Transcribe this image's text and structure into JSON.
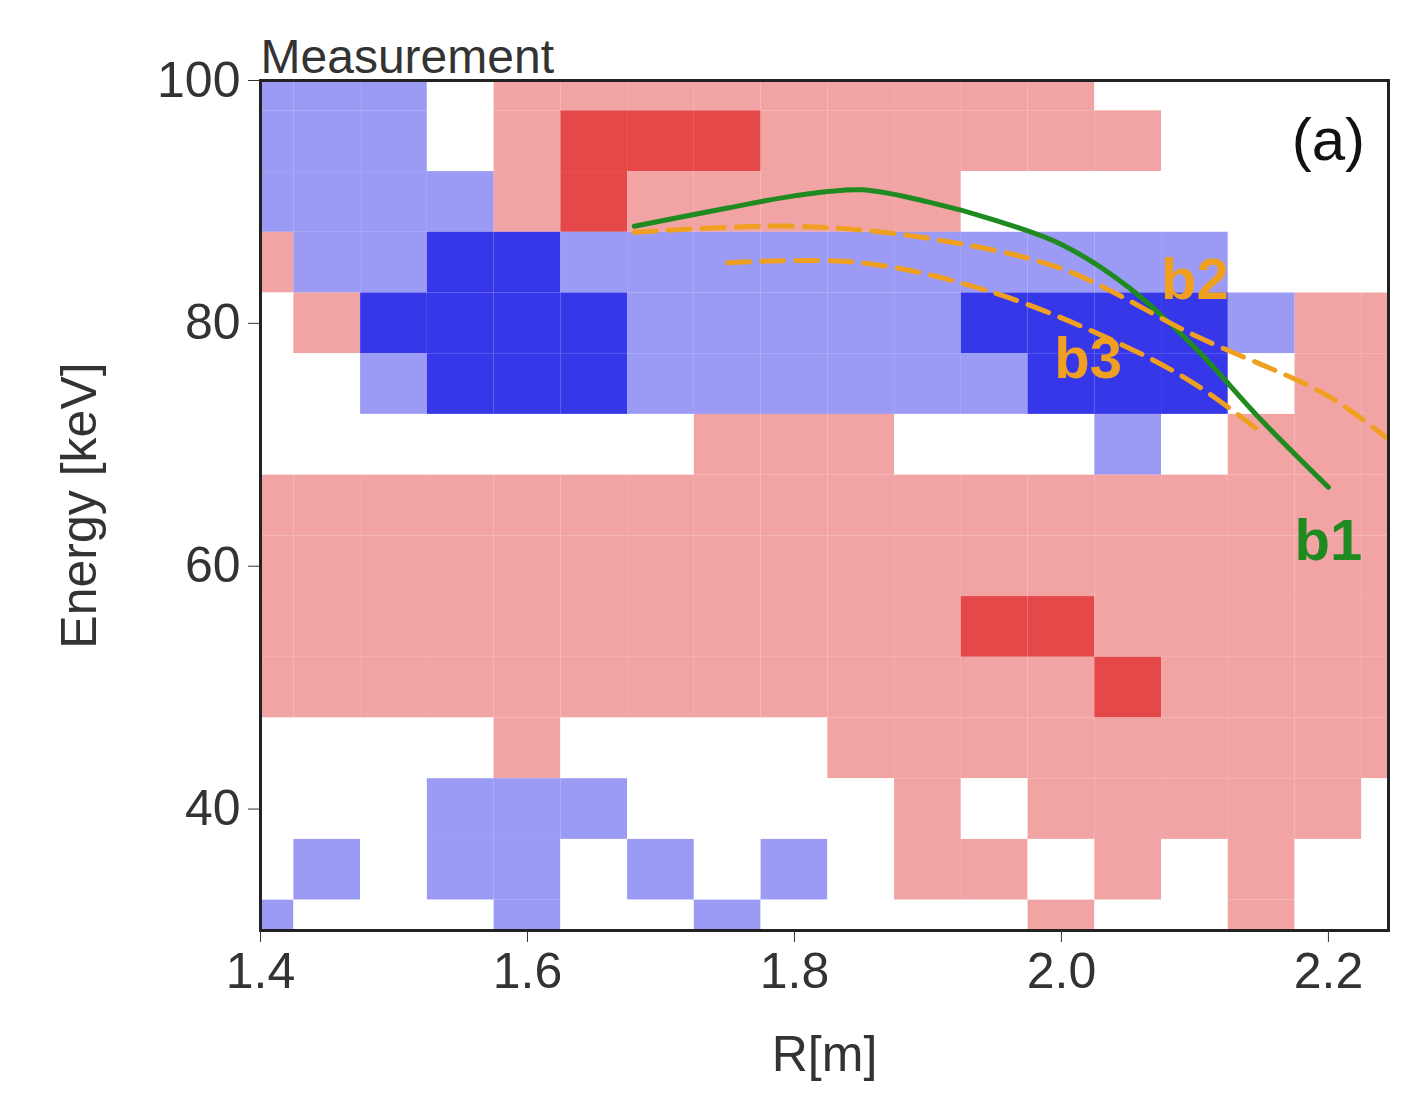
{
  "chart_data": {
    "type": "heatmap",
    "title": "Measurement",
    "xlabel": "R[m]",
    "ylabel": "Energy [keV]",
    "xlim": [
      1.4,
      2.245
    ],
    "ylim": [
      30,
      100
    ],
    "xticks": [
      1.4,
      1.6,
      1.8,
      {
        "value": 2,
        "label": "2.0"
      },
      2.2
    ],
    "yticks": [
      40,
      60,
      80,
      100
    ],
    "grid": false,
    "cells": {
      "x": [
        1.4,
        1.45,
        1.5,
        1.55,
        1.6,
        1.65,
        1.7,
        1.75,
        1.8,
        1.85,
        1.9,
        1.95,
        2.0,
        2.05,
        2.1,
        2.15,
        2.2,
        2.25
      ],
      "y": [
        100,
        95,
        90,
        85,
        80,
        75,
        70,
        65,
        60,
        55,
        50,
        45,
        40,
        35,
        30
      ],
      "values": [
        [
          -1,
          -1,
          -1,
          0,
          1,
          1,
          1,
          1,
          1,
          1,
          1,
          1,
          1,
          0,
          0,
          0,
          0,
          0
        ],
        [
          -1,
          -1,
          -1,
          0,
          1,
          2,
          2,
          2,
          1,
          1,
          1,
          1,
          1,
          1,
          0,
          0,
          0,
          0
        ],
        [
          -1,
          -1,
          -1,
          -1,
          1,
          2,
          1,
          1,
          1,
          1,
          1,
          0,
          0,
          0,
          0,
          0,
          0,
          0
        ],
        [
          1,
          -1,
          -1,
          -2,
          -2,
          -1,
          -1,
          -1,
          -1,
          -1,
          -1,
          -1,
          -1,
          -1,
          -1,
          0,
          0,
          0
        ],
        [
          0,
          1,
          -2,
          -2,
          -2,
          -2,
          -1,
          -1,
          -1,
          -1,
          -1,
          -2,
          -2,
          -2,
          -2,
          -1,
          1,
          1
        ],
        [
          0,
          0,
          -1,
          -2,
          -2,
          -2,
          -1,
          -1,
          -1,
          -1,
          -1,
          -1,
          -2,
          -2,
          -2,
          0,
          1,
          1
        ],
        [
          0,
          0,
          0,
          0,
          0,
          0,
          0,
          1,
          1,
          1,
          0,
          0,
          0,
          -1,
          0,
          1,
          1,
          1
        ],
        [
          1,
          1,
          1,
          1,
          1,
          1,
          1,
          1,
          1,
          1,
          1,
          1,
          1,
          1,
          1,
          1,
          1,
          1
        ],
        [
          1,
          1,
          1,
          1,
          1,
          1,
          1,
          1,
          1,
          1,
          1,
          1,
          1,
          1,
          1,
          1,
          1,
          1
        ],
        [
          1,
          1,
          1,
          1,
          1,
          1,
          1,
          1,
          1,
          1,
          1,
          2,
          2,
          1,
          1,
          1,
          1,
          1
        ],
        [
          1,
          1,
          1,
          1,
          1,
          1,
          1,
          1,
          1,
          1,
          1,
          1,
          1,
          2,
          1,
          1,
          1,
          1
        ],
        [
          0,
          0,
          0,
          0,
          1,
          0,
          0,
          0,
          0,
          1,
          1,
          1,
          1,
          1,
          1,
          1,
          1,
          1
        ],
        [
          0,
          0,
          0,
          -1,
          -1,
          -1,
          0,
          0,
          0,
          0,
          1,
          0,
          1,
          1,
          1,
          1,
          1,
          0
        ],
        [
          0,
          -1,
          0,
          -1,
          -1,
          0,
          -1,
          0,
          -1,
          0,
          1,
          1,
          0,
          1,
          0,
          1,
          0,
          0
        ],
        [
          -1,
          0,
          0,
          0,
          -1,
          0,
          0,
          -1,
          0,
          0,
          0,
          0,
          1,
          0,
          0,
          1,
          0,
          0
        ]
      ],
      "color_range": [
        -2,
        2
      ]
    },
    "series": [
      {
        "name": "b1",
        "type": "line",
        "color": "#1f8a1f",
        "line_style": "solid",
        "x": [
          1.68,
          1.75,
          1.8,
          1.85,
          1.9,
          1.95,
          2.0,
          2.05,
          2.1,
          2.15,
          2.2
        ],
        "values": [
          88,
          89.5,
          90.5,
          91,
          90,
          88.5,
          86.5,
          83,
          78,
          72,
          66.5
        ],
        "label_x": 2.2,
        "label_y": 62
      },
      {
        "name": "b2",
        "type": "line",
        "color": "#f0a020",
        "line_style": "dashed",
        "x": [
          1.68,
          1.8,
          1.9,
          2.0,
          2.1,
          2.2,
          2.25
        ],
        "values": [
          87.5,
          88,
          87,
          84.5,
          79,
          74,
          70
        ],
        "label_x": 2.1,
        "label_y": 83.5
      },
      {
        "name": "b3",
        "type": "line",
        "color": "#f0a020",
        "line_style": "dashed",
        "x": [
          1.75,
          1.85,
          1.95,
          2.05,
          2.1,
          2.15
        ],
        "values": [
          85,
          85,
          82.5,
          78,
          75,
          71
        ],
        "label_x": 2.02,
        "label_y": 77
      }
    ],
    "annotations": [
      {
        "text": "(a)",
        "x": 2.2,
        "y": 95
      }
    ]
  }
}
